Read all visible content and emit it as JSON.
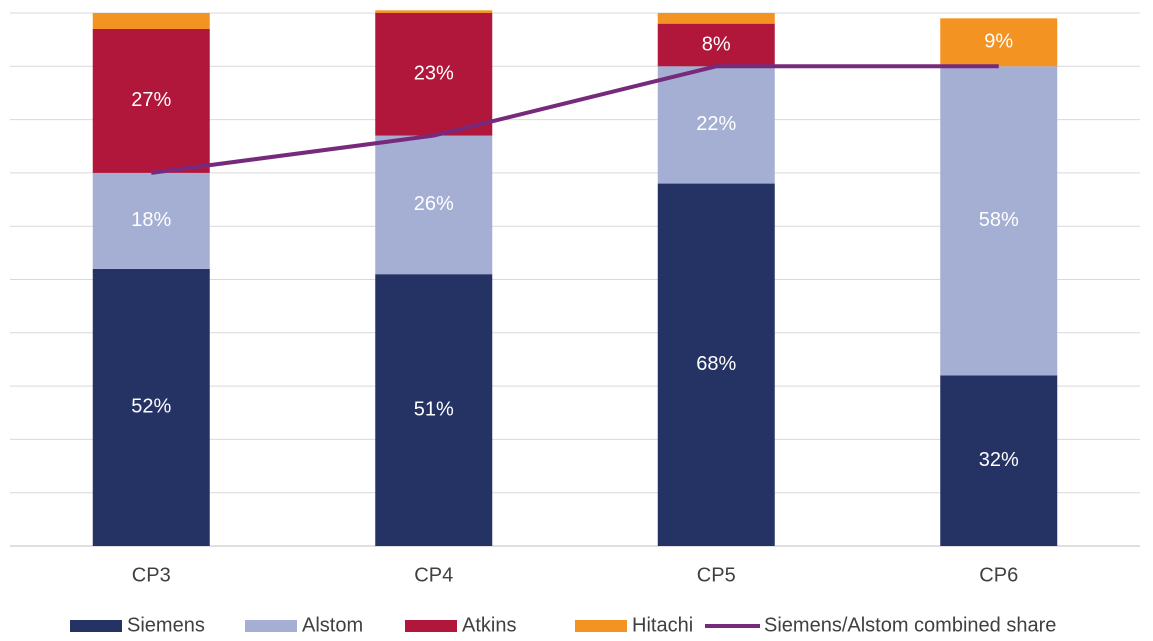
{
  "chart_data": {
    "type": "stacked-bar-line",
    "categories": [
      "CP3",
      "CP4",
      "CP5",
      "CP6"
    ],
    "ylim": [
      0,
      100
    ],
    "yticks": [
      0,
      10,
      20,
      30,
      40,
      50,
      60,
      70,
      80,
      90,
      100
    ],
    "grid": true,
    "legend": "bottom",
    "series": [
      {
        "name": "Siemens",
        "color": "#253264",
        "values": [
          52,
          51,
          68,
          32
        ],
        "value_labels": [
          "52%",
          "51%",
          "68%",
          "32%"
        ]
      },
      {
        "name": "Alstom",
        "color": "#a4afd3",
        "values": [
          18,
          26,
          22,
          58
        ],
        "value_labels": [
          "18%",
          "26%",
          "22%",
          "58%"
        ]
      },
      {
        "name": "Atkins",
        "color": "#b0173a",
        "values": [
          27,
          23,
          8,
          0
        ],
        "value_labels": [
          "27%",
          "23%",
          "8%",
          null
        ]
      },
      {
        "name": "Hitachi",
        "color": "#f39322",
        "values": [
          3,
          0.5,
          2,
          9
        ],
        "value_labels": [
          null,
          null,
          null,
          "9%"
        ]
      },
      {
        "name": "Siemens/Alstom combined share",
        "color": "#772a7c",
        "type": "line",
        "values": [
          70,
          77,
          90,
          90
        ]
      }
    ]
  }
}
